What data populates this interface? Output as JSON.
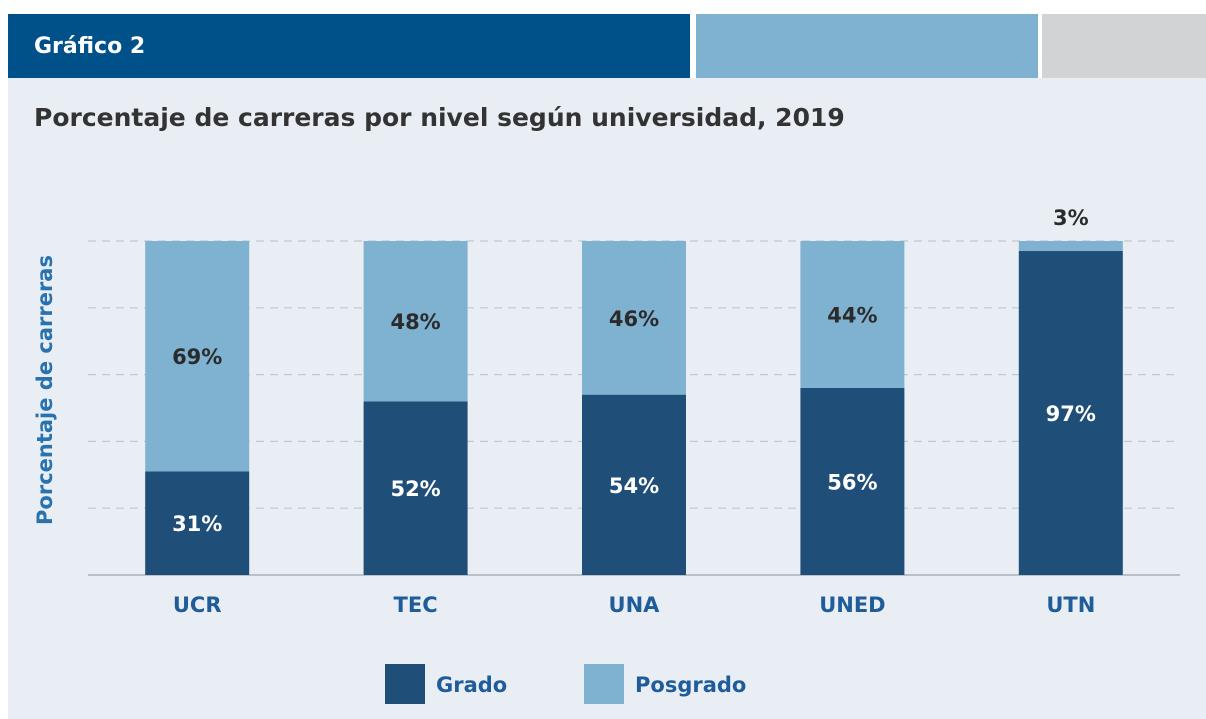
{
  "header": "Gráfico 2",
  "chart_data": {
    "type": "bar",
    "stacked": true,
    "title": "Porcentaje de carreras por nivel según universidad, 2019",
    "y_label": "Porcentaje de carreras",
    "categories": [
      "UCR",
      "TEC",
      "UNA",
      "UNED",
      "UTN"
    ],
    "series": [
      {
        "name": "Grado",
        "color": "#1f4e79",
        "values": [
          31,
          52,
          54,
          56,
          97
        ],
        "value_labels": [
          "31%",
          "52%",
          "54%",
          "56%",
          "97%"
        ]
      },
      {
        "name": "Posgrado",
        "color": "#7fb1d1",
        "values": [
          69,
          48,
          46,
          44,
          3
        ],
        "value_labels": [
          "69%",
          "48%",
          "46%",
          "44%",
          "3%"
        ]
      }
    ],
    "ylim": [
      0,
      100
    ],
    "yticks": [
      0,
      20,
      40,
      60,
      80,
      100
    ],
    "grid": true,
    "legend": "bottom"
  }
}
